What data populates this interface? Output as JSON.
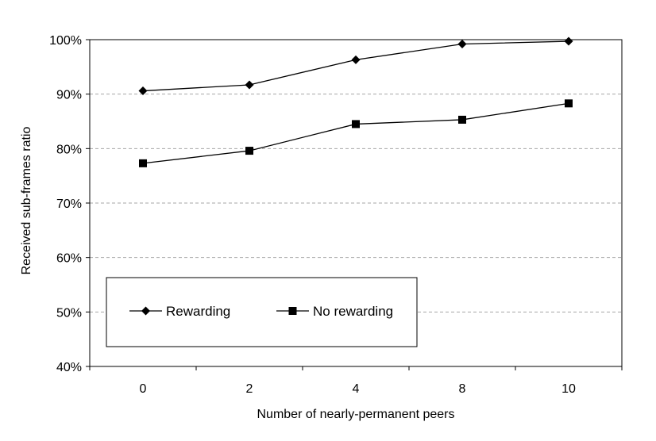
{
  "chart_data": {
    "type": "line",
    "categories": [
      "0",
      "2",
      "4",
      "8",
      "10"
    ],
    "series": [
      {
        "name": "Rewarding",
        "values": [
          90.6,
          91.7,
          96.3,
          99.2,
          99.7
        ],
        "marker": "diamond"
      },
      {
        "name": "No rewarding",
        "values": [
          77.3,
          79.6,
          84.5,
          85.3,
          88.3
        ],
        "marker": "square"
      }
    ],
    "title": "",
    "xlabel": "Number of nearly-permanent peers",
    "ylabel": "Received sub-frames ratio",
    "ylim": [
      40,
      100
    ],
    "yticks": [
      "40%",
      "50%",
      "60%",
      "70%",
      "80%",
      "90%",
      "100%"
    ],
    "grid": "horizontal dashed",
    "legend": "lower-left inside plot"
  }
}
